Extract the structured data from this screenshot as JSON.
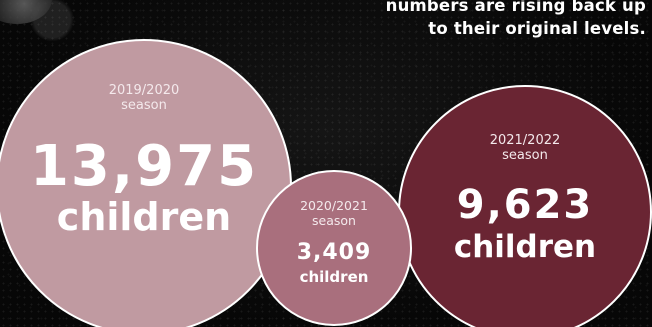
{
  "headline": {
    "line1": "numbers are rising back up",
    "line2": "to their original levels."
  },
  "stats": [
    {
      "season_year": "2019/2020",
      "season_word": "season",
      "number": "13,975",
      "unit": "children",
      "color": "#c09aa1"
    },
    {
      "season_year": "2020/2021",
      "season_word": "season",
      "number": "3,409",
      "unit": "children",
      "color": "#a96f7d"
    },
    {
      "season_year": "2021/2022",
      "season_word": "season",
      "number": "9,623",
      "unit": "children",
      "color": "#6a2533"
    }
  ]
}
